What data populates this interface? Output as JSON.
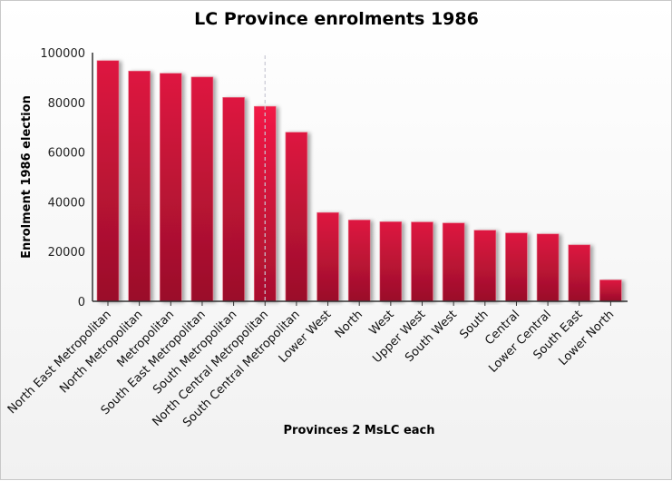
{
  "chart_data": {
    "type": "bar",
    "title": "LC Province enrolments 1986",
    "xlabel": "Provinces 2 MsLC each",
    "ylabel": "Enrolment 1986 election",
    "ylim": [
      0,
      100000
    ],
    "yticks": [
      "0",
      "20000",
      "40000",
      "60000",
      "80000",
      "100000"
    ],
    "grid": false,
    "categories": [
      "North East Metropolitan",
      "North Metropolitan",
      "Metropolitan",
      "South East Metropolitan",
      "South Metropolitan",
      "North Central Metropolitan",
      "South Central Metropolitan",
      "Lower West",
      "North",
      "West",
      "Upper West",
      "South West",
      "South",
      "Central",
      "Lower Central",
      "South East",
      "Lower North"
    ],
    "values": [
      96800,
      92600,
      91700,
      90200,
      82000,
      78400,
      68000,
      35700,
      32700,
      32000,
      31900,
      31500,
      28600,
      27500,
      27100,
      22700,
      8600
    ],
    "highlighted_category": "North Central Metropolitan",
    "bar_color": "#d7143c"
  }
}
